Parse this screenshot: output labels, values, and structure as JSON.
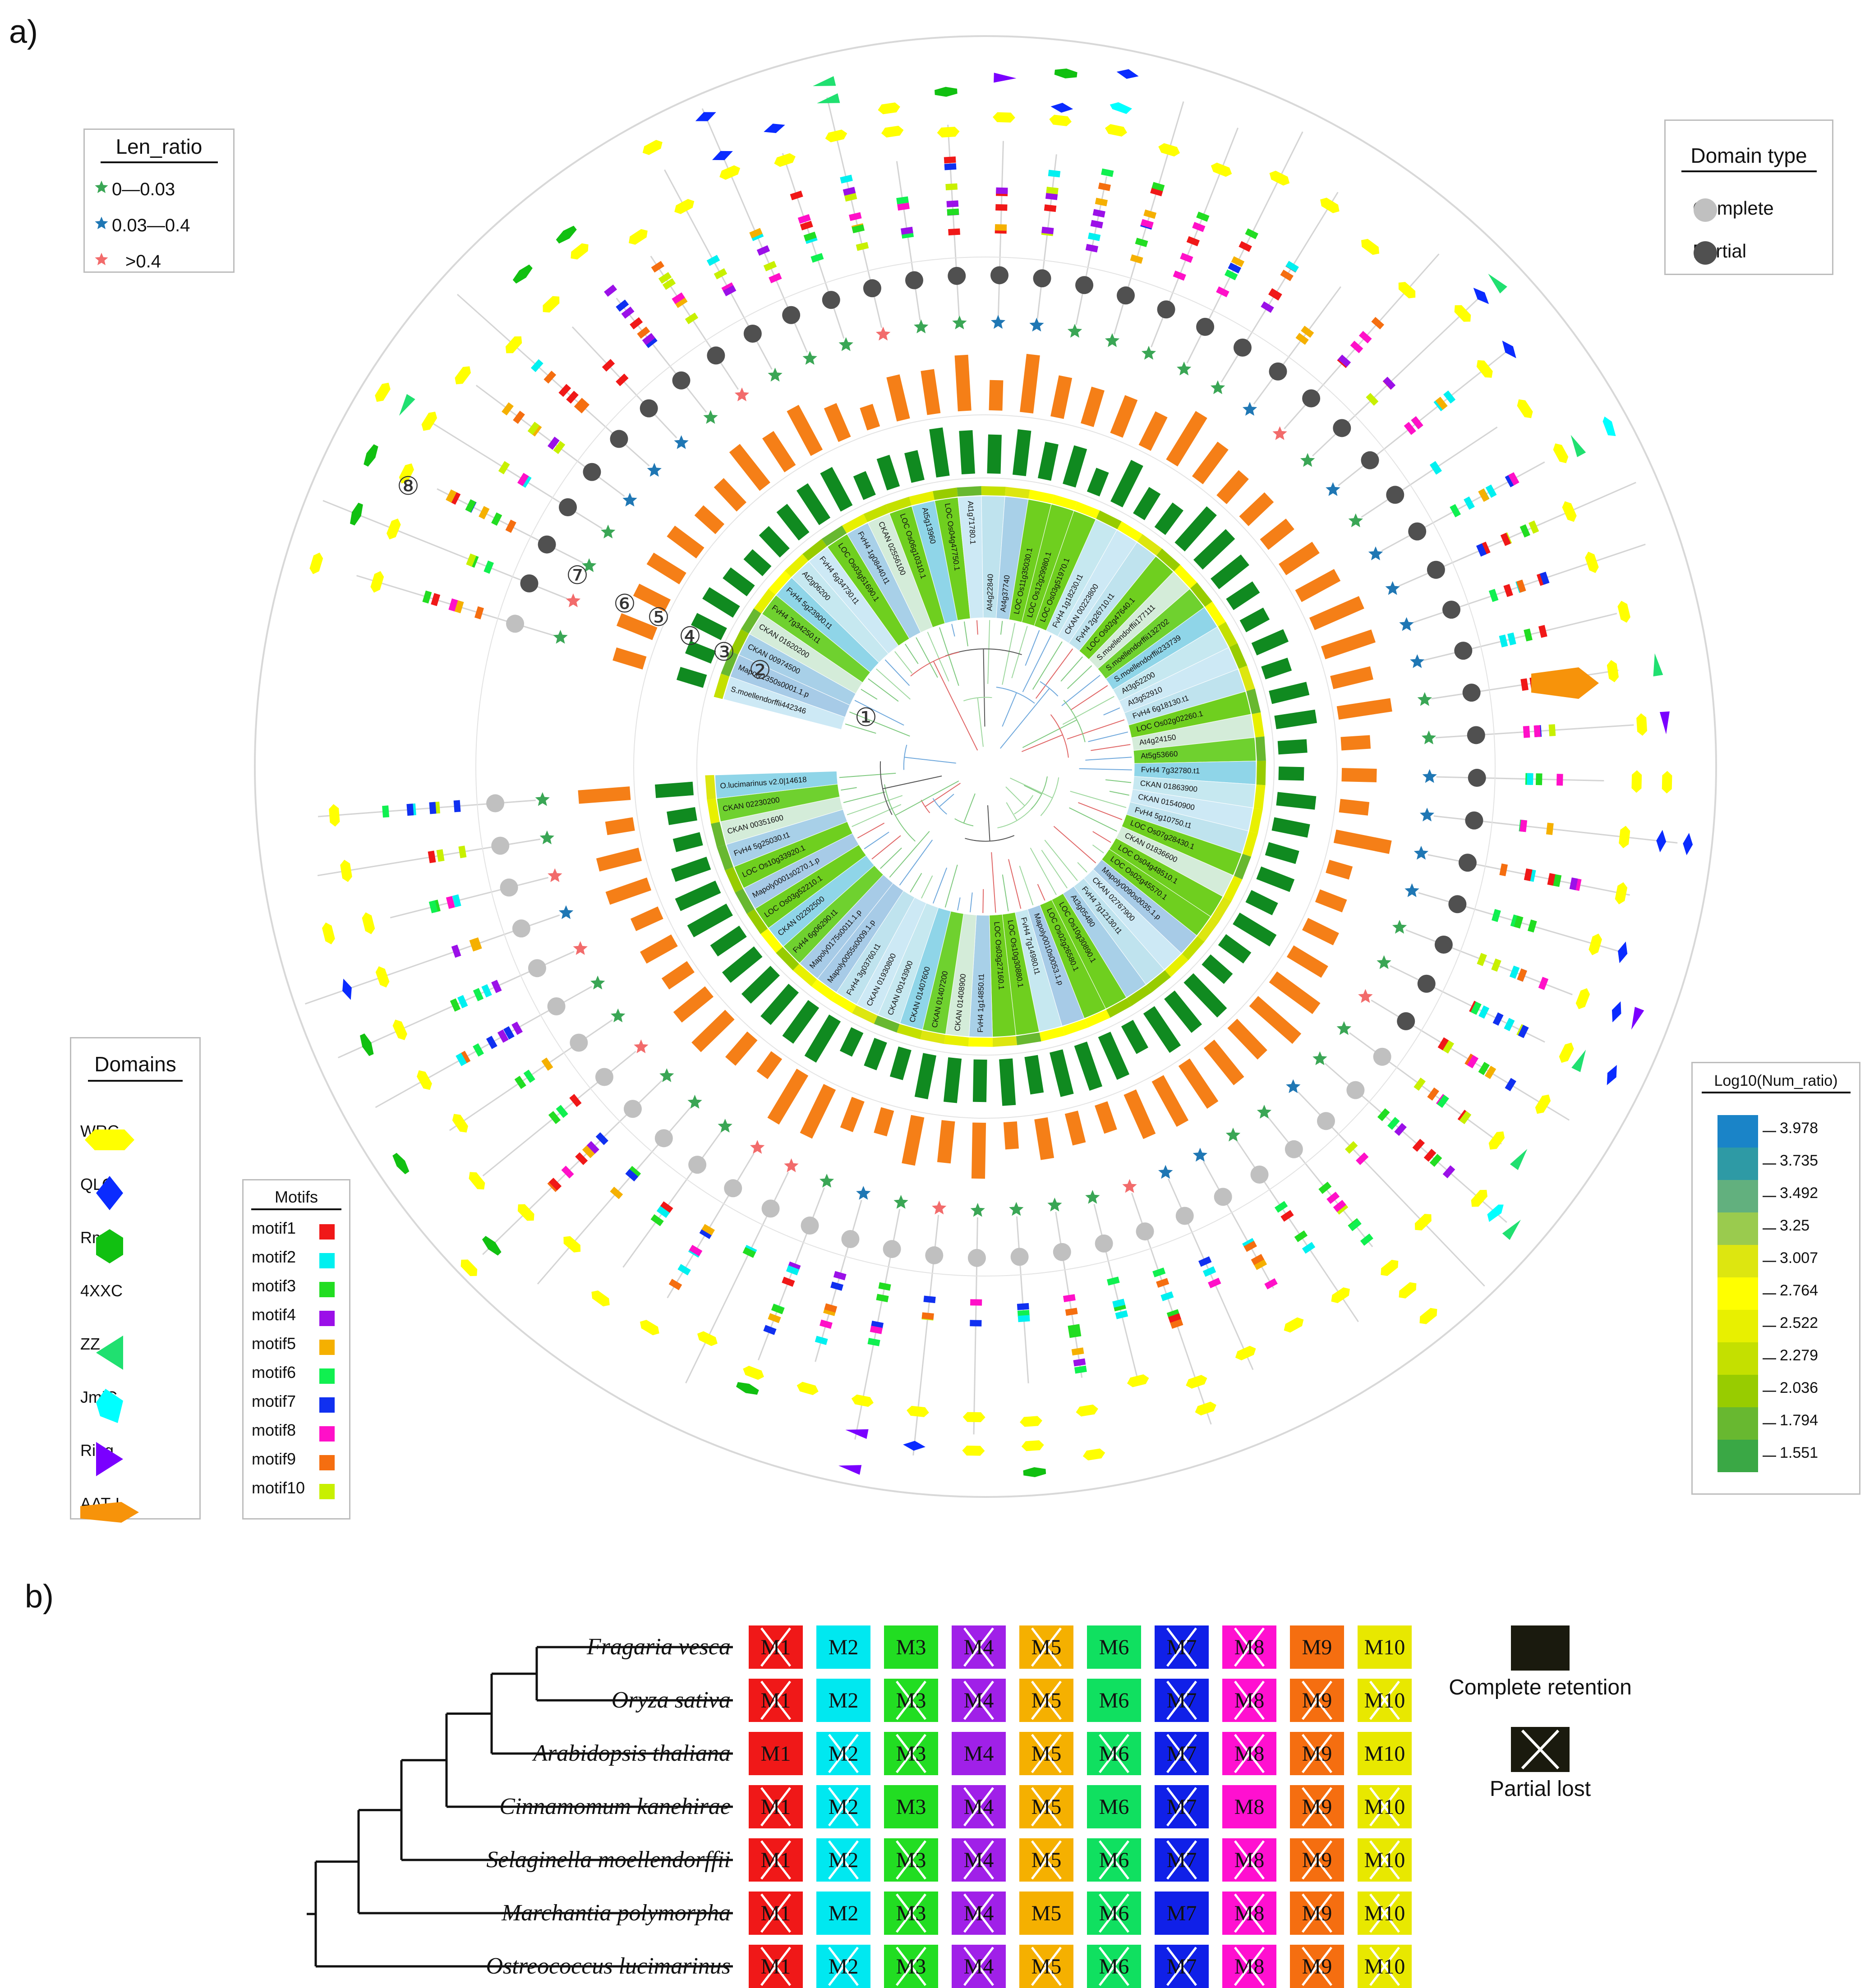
{
  "panel_a_label": "a)",
  "panel_b_label": "b)",
  "ring_numbers": [
    "①",
    "②",
    "③",
    "④",
    "⑤",
    "⑥",
    "⑦",
    "⑧"
  ],
  "len_ratio_legend": {
    "title": "Len_ratio",
    "items": [
      {
        "label": "0—0.03",
        "color": "#3aa655"
      },
      {
        "label": "0.03—0.4",
        "color": "#1f77b4"
      },
      {
        "label": ">0.4",
        "color": "#f26b6b"
      }
    ]
  },
  "domain_type_legend": {
    "title": "Domain type",
    "items": [
      {
        "label": "Complete",
        "color": "#c0c0c0"
      },
      {
        "label": "Partial",
        "color": "#505050"
      }
    ]
  },
  "domains_legend": {
    "title": "Domains",
    "items": [
      {
        "label": "WRC",
        "color": "#ffff00",
        "shape": "hexagon-flat"
      },
      {
        "label": "QLQ",
        "color": "#0a2bff",
        "shape": "diamond"
      },
      {
        "label": "Rmic",
        "color": "#11c011",
        "shape": "hexagon"
      },
      {
        "label": "4XXC",
        "color": "#f5b800",
        "shape": "ellipse"
      },
      {
        "label": "ZZ",
        "color": "#20e070",
        "shape": "triangle-left"
      },
      {
        "label": "JmjC",
        "color": "#00ffff",
        "shape": "pentagon"
      },
      {
        "label": "Ring",
        "color": "#7a00ff",
        "shape": "triangle-right"
      },
      {
        "label": "AAT-I",
        "color": "#f7930a",
        "shape": "arrow"
      }
    ]
  },
  "motifs_legend": {
    "title": "Motifs",
    "items": [
      {
        "label": "motif1",
        "color": "#f01818"
      },
      {
        "label": "motif2",
        "color": "#00f0f0"
      },
      {
        "label": "motif3",
        "color": "#22dd22"
      },
      {
        "label": "motif4",
        "color": "#9b10e8"
      },
      {
        "label": "motif5",
        "color": "#f5b000"
      },
      {
        "label": "motif6",
        "color": "#10f050"
      },
      {
        "label": "motif7",
        "color": "#1030f0"
      },
      {
        "label": "motif8",
        "color": "#ff10c8"
      },
      {
        "label": "motif9",
        "color": "#f56e10"
      },
      {
        "label": "motif10",
        "color": "#c8f000"
      }
    ]
  },
  "num_ratio_legend": {
    "title": "Log10(Num_ratio)",
    "items": [
      {
        "label": "3.978",
        "color": "#1a84c8"
      },
      {
        "label": "3.735",
        "color": "#2e9aa5"
      },
      {
        "label": "3.492",
        "color": "#62b07e"
      },
      {
        "label": "3.25",
        "color": "#9acb4e"
      },
      {
        "label": "3.007",
        "color": "#dde610"
      },
      {
        "label": "2.764",
        "color": "#ffff00"
      },
      {
        "label": "2.522",
        "color": "#e8f000"
      },
      {
        "label": "2.279",
        "color": "#c4e000"
      },
      {
        "label": "2.036",
        "color": "#98cc00"
      },
      {
        "label": "1.794",
        "color": "#68b830"
      },
      {
        "label": "1.551",
        "color": "#3aa845"
      }
    ]
  },
  "gene_labels": [
    "S.moellendorffii442346",
    "Mapoly1350s0001.1.p",
    "CKAN 00974500",
    "CKAN 01620200",
    "FvH4 7g34250.t1",
    "FvH4 5g23900.t1",
    "At2g06200",
    "FvH4 6g34730.t1",
    "LOC Os03g51690.1",
    "FvH4 1g08440.t1",
    "CKAN 02556100",
    "LOC Os06g10310.1",
    "At5g13960",
    "LOC Os04g47750.1",
    "At1g71780.1",
    "At4g22840",
    "At4g37740",
    "LOC Os11g35030.1",
    "LOC Os12g29980.1",
    "LOC Os03g51970.1",
    "FvH4 1g18230.t1",
    "CKAN 00223800",
    "FvH4 2g26710.t1",
    "LOC Os02g47640.1",
    "S.moellendorffii177111",
    "S.moellendorffii132702",
    "S.moellendorffii233739",
    "At3g52200",
    "At3g52910",
    "FvH4 6g18130.t1",
    "LOC Os02g02260.1",
    "At4g24150",
    "At5g53660",
    "FvH4 7g32780.t1",
    "CKAN 01863900",
    "CKAN 01540900",
    "FvH4 5g10750.t1",
    "LOC Os07g28430.1",
    "CKAN 01836600",
    "LOC Os04g48510.1",
    "LOC Os02g45570.1",
    "Mapoly0090s0035.1.p",
    "CKAN 02767900",
    "FvH4 7g12130.t1",
    "At3g05480",
    "LOC Os10g30890.1",
    "LOC Os02g26580.1",
    "Mapoly0010s0053.1.p",
    "FvH4 7g14980.t1",
    "LOC Os10g30880.1",
    "LOC Os03g27160.1",
    "FvH4 1g14850.t1",
    "CKAN 01408900",
    "CKAN 01407200",
    "CKAN 01407600",
    "CKAN 00143900",
    "CKAN 01930800",
    "FvH4 3g03760.t1",
    "Mapoly0055s0009.1.p",
    "Mapoly0175s0011.1.p",
    "FvH4 6g06290.t1",
    "CKAN 02292500",
    "LOC Os03g52210.1",
    "Mapoly0001s0270.1.p",
    "LOC Os10g33920.1",
    "FvH4 5g25030.t1",
    "CKAN 00351600",
    "CKAN 02230200",
    "O.lucimarinus v2.0|14618"
  ],
  "panel_b": {
    "species": [
      "Fragaria vesca",
      "Oryza sativa",
      "Arabidopsis thaliana",
      "Cinnamomum kanehirae",
      "Selaginella moellendorffii",
      "Marchantia polymorpha",
      "Ostreococcus lucimarinus"
    ],
    "motif_labels": [
      "M1",
      "M2",
      "M3",
      "M4",
      "M5",
      "M6",
      "M7",
      "M8",
      "M9",
      "M10"
    ],
    "motif_colors": [
      "#f01818",
      "#00e8f0",
      "#22dd22",
      "#a020e8",
      "#f5b000",
      "#10e060",
      "#1020e8",
      "#ff10d0",
      "#f56e10",
      "#e8e800"
    ],
    "lost": [
      [
        1,
        0,
        0,
        1,
        1,
        0,
        1,
        1,
        0,
        0
      ],
      [
        1,
        0,
        1,
        1,
        1,
        0,
        1,
        1,
        1,
        1
      ],
      [
        0,
        1,
        1,
        0,
        1,
        1,
        1,
        1,
        1,
        0
      ],
      [
        1,
        1,
        0,
        1,
        1,
        0,
        1,
        0,
        1,
        1
      ],
      [
        1,
        1,
        1,
        1,
        1,
        1,
        1,
        1,
        1,
        1
      ],
      [
        1,
        0,
        1,
        1,
        0,
        1,
        0,
        1,
        1,
        1
      ],
      [
        1,
        1,
        1,
        1,
        1,
        1,
        1,
        1,
        1,
        1
      ]
    ],
    "key_complete": "Complete retention",
    "key_lost": "Partial lost"
  }
}
